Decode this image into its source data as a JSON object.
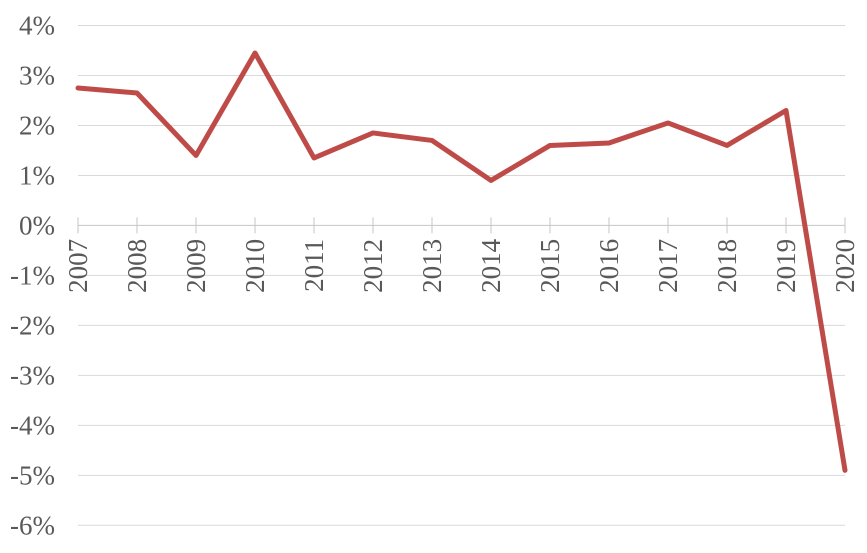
{
  "chart_data": {
    "type": "line",
    "categories": [
      "2007",
      "2008",
      "2009",
      "2010",
      "2011",
      "2012",
      "2013",
      "2014",
      "2015",
      "2016",
      "2017",
      "2018",
      "2019",
      "2020"
    ],
    "series": [
      {
        "name": "percent-change-line",
        "values": [
          2.75,
          2.65,
          1.4,
          3.45,
          1.35,
          1.85,
          1.7,
          0.9,
          1.6,
          1.65,
          2.05,
          1.6,
          2.3,
          -4.9
        ]
      }
    ],
    "title": "",
    "xlabel": "",
    "ylabel": "",
    "ylim": [
      -6,
      4
    ],
    "ytick_step": 1,
    "ytick_labels": [
      "4%",
      "3%",
      "2%",
      "1%",
      "0%",
      "-1%",
      "-2%",
      "-3%",
      "-4%",
      "-5%",
      "-6%"
    ],
    "ytick_values": [
      4,
      3,
      2,
      1,
      0,
      -1,
      -2,
      -3,
      -4,
      -5,
      -6
    ],
    "grid": true,
    "legend": false,
    "x_labels_rotated_degrees": -90,
    "colors": {
      "line": "#BE4B48",
      "gridline": "#D9D9D9",
      "axis": "#C6C6C6",
      "tick_mark": "#C6C6C6",
      "label_text": "#595959",
      "background": "#FFFFFF"
    }
  }
}
